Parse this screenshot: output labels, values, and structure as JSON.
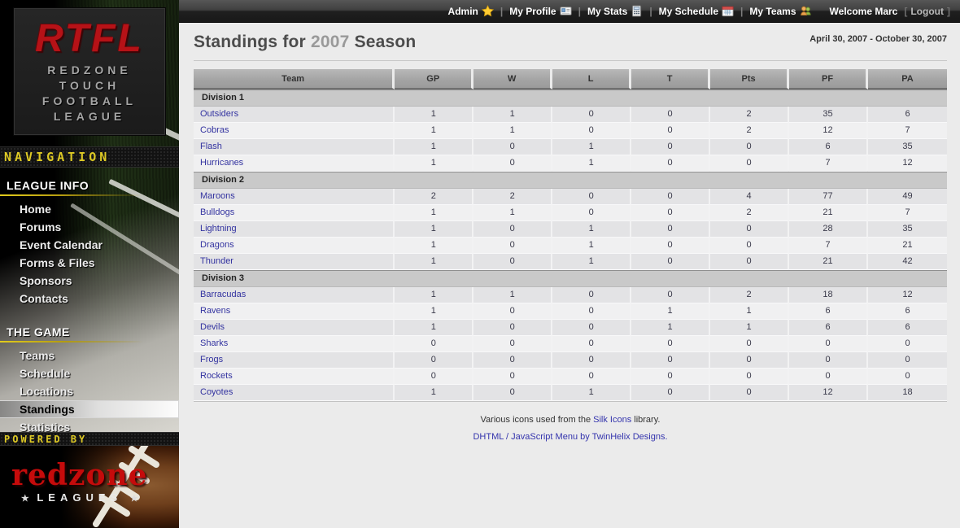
{
  "topbar": {
    "menu": [
      {
        "label": "Admin",
        "icon": "star-icon"
      },
      {
        "label": "My Profile",
        "icon": "vcard-icon"
      },
      {
        "label": "My Stats",
        "icon": "calculator-icon"
      },
      {
        "label": "My Schedule",
        "icon": "calendar-icon"
      },
      {
        "label": "My Teams",
        "icon": "group-icon"
      }
    ],
    "separator": "|",
    "welcome": "Welcome Marc",
    "logout_bracket_left": "[",
    "logout_label": "Logout",
    "logout_bracket_right": "]"
  },
  "sidebar": {
    "logo": {
      "acronym": "RTFL",
      "lines": [
        "REDZONE",
        "TOUCH",
        "FOOTBALL",
        "LEAGUE"
      ]
    },
    "nav_banner": "NAVIGATION",
    "sections": [
      {
        "title": "LEAGUE INFO",
        "items": [
          {
            "label": "Home"
          },
          {
            "label": "Forums"
          },
          {
            "label": "Event Calendar"
          },
          {
            "label": "Forms & Files"
          },
          {
            "label": "Sponsors"
          },
          {
            "label": "Contacts"
          }
        ]
      },
      {
        "title": "THE GAME",
        "items": [
          {
            "label": "Teams"
          },
          {
            "label": "Schedule"
          },
          {
            "label": "Locations"
          },
          {
            "label": "Standings",
            "active": true
          },
          {
            "label": "Statistics"
          }
        ]
      }
    ],
    "powered_banner": "POWERED BY",
    "powered_logo": {
      "name": "redzone",
      "star": "★",
      "sub": "LEAGUES"
    }
  },
  "header": {
    "title_prefix": "Standings for",
    "season": "2007",
    "title_suffix": "Season",
    "date_range": "April 30, 2007 - October 30, 2007"
  },
  "table": {
    "columns": [
      "Team",
      "GP",
      "W",
      "L",
      "T",
      "Pts",
      "PF",
      "PA"
    ],
    "divisions": [
      {
        "name": "Division 1",
        "teams": [
          {
            "name": "Outsiders",
            "gp": 1,
            "w": 1,
            "l": 0,
            "t": 0,
            "pts": 2,
            "pf": 35,
            "pa": 6
          },
          {
            "name": "Cobras",
            "gp": 1,
            "w": 1,
            "l": 0,
            "t": 0,
            "pts": 2,
            "pf": 12,
            "pa": 7
          },
          {
            "name": "Flash",
            "gp": 1,
            "w": 0,
            "l": 1,
            "t": 0,
            "pts": 0,
            "pf": 6,
            "pa": 35
          },
          {
            "name": "Hurricanes",
            "gp": 1,
            "w": 0,
            "l": 1,
            "t": 0,
            "pts": 0,
            "pf": 7,
            "pa": 12
          }
        ]
      },
      {
        "name": "Division 2",
        "teams": [
          {
            "name": "Maroons",
            "gp": 2,
            "w": 2,
            "l": 0,
            "t": 0,
            "pts": 4,
            "pf": 77,
            "pa": 49
          },
          {
            "name": "Bulldogs",
            "gp": 1,
            "w": 1,
            "l": 0,
            "t": 0,
            "pts": 2,
            "pf": 21,
            "pa": 7
          },
          {
            "name": "Lightning",
            "gp": 1,
            "w": 0,
            "l": 1,
            "t": 0,
            "pts": 0,
            "pf": 28,
            "pa": 35
          },
          {
            "name": "Dragons",
            "gp": 1,
            "w": 0,
            "l": 1,
            "t": 0,
            "pts": 0,
            "pf": 7,
            "pa": 21
          },
          {
            "name": "Thunder",
            "gp": 1,
            "w": 0,
            "l": 1,
            "t": 0,
            "pts": 0,
            "pf": 21,
            "pa": 42
          }
        ]
      },
      {
        "name": "Division 3",
        "teams": [
          {
            "name": "Barracudas",
            "gp": 1,
            "w": 1,
            "l": 0,
            "t": 0,
            "pts": 2,
            "pf": 18,
            "pa": 12
          },
          {
            "name": "Ravens",
            "gp": 1,
            "w": 0,
            "l": 0,
            "t": 1,
            "pts": 1,
            "pf": 6,
            "pa": 6
          },
          {
            "name": "Devils",
            "gp": 1,
            "w": 0,
            "l": 0,
            "t": 1,
            "pts": 1,
            "pf": 6,
            "pa": 6
          },
          {
            "name": "Sharks",
            "gp": 0,
            "w": 0,
            "l": 0,
            "t": 0,
            "pts": 0,
            "pf": 0,
            "pa": 0
          },
          {
            "name": "Frogs",
            "gp": 0,
            "w": 0,
            "l": 0,
            "t": 0,
            "pts": 0,
            "pf": 0,
            "pa": 0
          },
          {
            "name": "Rockets",
            "gp": 0,
            "w": 0,
            "l": 0,
            "t": 0,
            "pts": 0,
            "pf": 0,
            "pa": 0
          },
          {
            "name": "Coyotes",
            "gp": 1,
            "w": 0,
            "l": 1,
            "t": 0,
            "pts": 0,
            "pf": 12,
            "pa": 18
          }
        ]
      }
    ]
  },
  "footer": {
    "line1_pre": "Various icons used from the ",
    "line1_link": "Silk Icons",
    "line1_post": " library.",
    "line2": "DHTML / JavaScript Menu by TwinHelix Designs."
  },
  "colors": {
    "brand_red": "#c50b0b",
    "nav_yellow": "#ddc925",
    "link_blue": "#3333a0",
    "division_bg": "#c9c9c9",
    "row_dark": "#e3e3e5",
    "row_light": "#f0f0f1",
    "header_gray": "#a3a3a3"
  }
}
